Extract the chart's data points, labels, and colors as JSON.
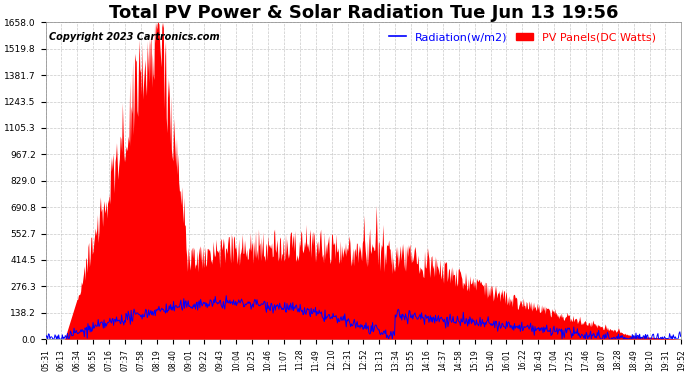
{
  "title": "Total PV Power & Solar Radiation Tue Jun 13 19:56",
  "copyright": "Copyright 2023 Cartronics.com",
  "legend_radiation": "Radiation(w/m2)",
  "legend_pv": "PV Panels(DC Watts)",
  "ymax": 1658.0,
  "ymin": 0.0,
  "yticks": [
    0.0,
    138.2,
    276.3,
    414.5,
    552.7,
    690.8,
    829.0,
    967.2,
    1105.3,
    1243.5,
    1381.7,
    1519.8,
    1658.0
  ],
  "background_color": "#ffffff",
  "grid_color": "#bbbbbb",
  "radiation_color": "#0000ff",
  "pv_color": "#ff0000",
  "title_fontsize": 13,
  "copyright_fontsize": 7,
  "legend_fontsize": 8,
  "xtick_labels": [
    "05:31",
    "06:13",
    "06:34",
    "06:55",
    "07:16",
    "07:37",
    "07:58",
    "08:19",
    "08:40",
    "09:01",
    "09:22",
    "09:43",
    "10:04",
    "10:25",
    "10:46",
    "11:07",
    "11:28",
    "11:49",
    "12:10",
    "12:31",
    "12:52",
    "13:13",
    "13:34",
    "13:55",
    "14:16",
    "14:37",
    "14:58",
    "15:19",
    "15:40",
    "16:01",
    "16:22",
    "16:43",
    "17:04",
    "17:25",
    "17:46",
    "18:07",
    "18:28",
    "18:49",
    "19:10",
    "19:31",
    "19:52"
  ]
}
